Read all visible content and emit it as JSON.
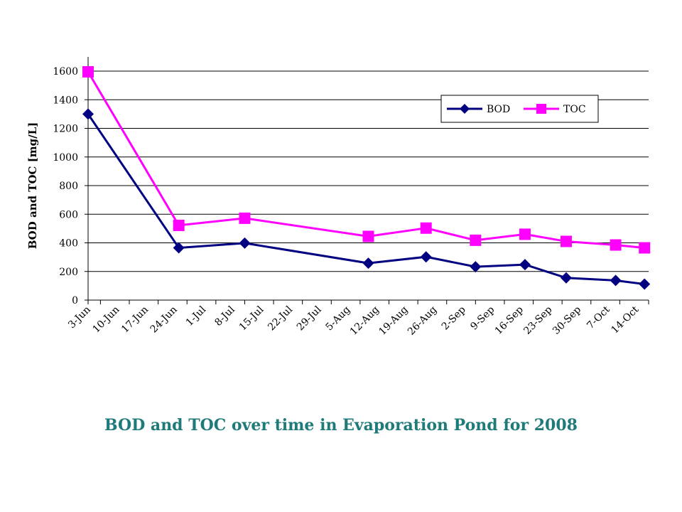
{
  "chart_data": {
    "type": "line",
    "title": "BOD and TOC over time in Evaporation Pond for 2008",
    "ylabel": "BOD and TOC [mg/L]",
    "xlabel": "",
    "ylim": [
      0,
      1600
    ],
    "yticks": [
      0,
      200,
      400,
      600,
      800,
      1000,
      1200,
      1400,
      1600
    ],
    "x_tick_labels": [
      "3-Jun",
      "10-Jun",
      "17-Jun",
      "24-Jun",
      "1-Jul",
      "8-Jul",
      "15-Jul",
      "22-Jul",
      "29-Jul",
      "5-Aug",
      "12-Aug",
      "19-Aug",
      "26-Aug",
      "2-Sep",
      "9-Sep",
      "16-Sep",
      "23-Sep",
      "30-Sep",
      "7-Oct",
      "14-Oct"
    ],
    "x_range_days": [
      "2008-06-03",
      "2008-10-17"
    ],
    "grid": "horizontal",
    "legend_position": "top-right",
    "series": [
      {
        "name": "BOD",
        "color": "#000080",
        "marker": "diamond",
        "points": [
          {
            "date": "2008-06-03",
            "value": 1300
          },
          {
            "date": "2008-06-25",
            "value": 365
          },
          {
            "date": "2008-07-11",
            "value": 398
          },
          {
            "date": "2008-08-10",
            "value": 258
          },
          {
            "date": "2008-08-24",
            "value": 302
          },
          {
            "date": "2008-09-05",
            "value": 233
          },
          {
            "date": "2008-09-17",
            "value": 248
          },
          {
            "date": "2008-09-27",
            "value": 155
          },
          {
            "date": "2008-10-09",
            "value": 137
          },
          {
            "date": "2008-10-16",
            "value": 112
          }
        ]
      },
      {
        "name": "TOC",
        "color": "#ff00ff",
        "marker": "square",
        "points": [
          {
            "date": "2008-06-03",
            "value": 1595
          },
          {
            "date": "2008-06-25",
            "value": 522
          },
          {
            "date": "2008-07-11",
            "value": 572
          },
          {
            "date": "2008-08-10",
            "value": 445
          },
          {
            "date": "2008-08-24",
            "value": 503
          },
          {
            "date": "2008-09-05",
            "value": 418
          },
          {
            "date": "2008-09-17",
            "value": 460
          },
          {
            "date": "2008-09-27",
            "value": 410
          },
          {
            "date": "2008-10-09",
            "value": 385
          },
          {
            "date": "2008-10-16",
            "value": 365
          }
        ]
      }
    ]
  }
}
